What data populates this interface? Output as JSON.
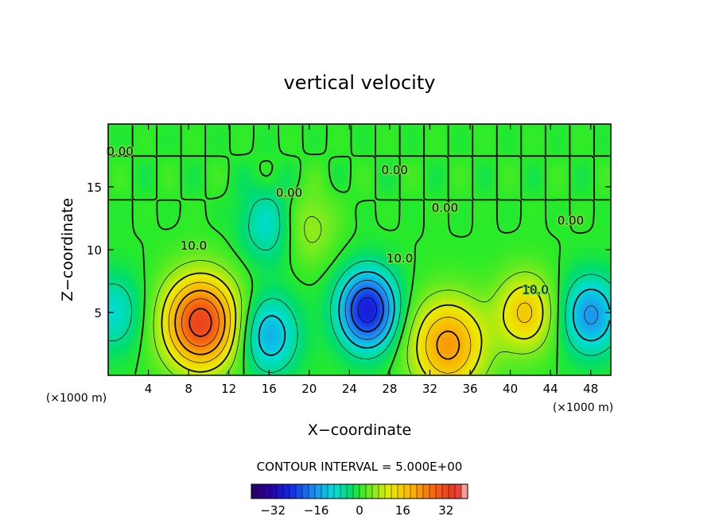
{
  "chart_data": {
    "type": "heatmap",
    "title": "vertical velocity",
    "xlabel": "X−coordinate",
    "ylabel": "Z−coordinate",
    "x_unit_left": "(×1000 m)",
    "x_unit_right": "(×1000 m)",
    "xlim": [
      0,
      50
    ],
    "ylim": [
      0,
      20
    ],
    "xticks": [
      4,
      8,
      12,
      16,
      20,
      24,
      28,
      32,
      36,
      40,
      44,
      48
    ],
    "yticks": [
      5,
      10,
      15
    ],
    "contour_interval_text": "CONTOUR INTERVAL = 5.000E+00",
    "contour_labels": [
      {
        "text": "0.00",
        "x": 1.2,
        "y": 17.5
      },
      {
        "text": "0.00",
        "x": 18.0,
        "y": 14.2
      },
      {
        "text": "0.00",
        "x": 28.5,
        "y": 16.0
      },
      {
        "text": "0.00",
        "x": 33.5,
        "y": 13.0
      },
      {
        "text": "0.00",
        "x": 46.0,
        "y": 12.0
      },
      {
        "text": "10.0",
        "x": 8.5,
        "y": 10.0
      },
      {
        "text": "10.0",
        "x": 29.0,
        "y": 9.0
      },
      {
        "text": "10.0",
        "x": 42.5,
        "y": 6.5
      }
    ],
    "features": [
      {
        "kind": "max",
        "x": 9.2,
        "z": 4.2,
        "value": 33
      },
      {
        "kind": "max",
        "x": 19.8,
        "z": 11.8,
        "value": 7
      },
      {
        "kind": "max",
        "x": 33.8,
        "z": 2.4,
        "value": 22
      },
      {
        "kind": "max",
        "x": 41.5,
        "z": 5.0,
        "value": 16
      },
      {
        "kind": "min",
        "x": 25.8,
        "z": 5.2,
        "value": -28
      },
      {
        "kind": "min",
        "x": 16.0,
        "z": 3.2,
        "value": -14
      },
      {
        "kind": "min",
        "x": 48.0,
        "z": 4.8,
        "value": -16
      },
      {
        "kind": "min",
        "x": 16.0,
        "z": 12.0,
        "value": -9
      },
      {
        "kind": "min",
        "x": 0.5,
        "z": 5.0,
        "value": -9
      }
    ],
    "colorbar": {
      "range": [
        -40,
        40
      ],
      "ticks": [
        -32,
        -16,
        0,
        16,
        32
      ],
      "tick_labels": [
        "−32",
        "−16",
        "0",
        "16",
        "32"
      ]
    }
  }
}
